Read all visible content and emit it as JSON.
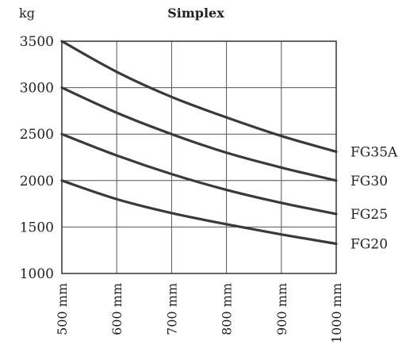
{
  "chart_data": {
    "type": "line",
    "title": "Simplex",
    "ylabel": "kg",
    "xlabel": "",
    "x": [
      500,
      600,
      700,
      800,
      900,
      1000
    ],
    "x_tick_labels": [
      "500 mm",
      "600 mm",
      "700 mm",
      "800 mm",
      "900 mm",
      "1000 mm"
    ],
    "y_ticks": [
      1000,
      1500,
      2000,
      2500,
      3000,
      3500
    ],
    "xlim": [
      500,
      1000
    ],
    "ylim": [
      1000,
      3500
    ],
    "grid": true,
    "series": [
      {
        "name": "FG35A",
        "values": [
          3500,
          3170,
          2900,
          2680,
          2480,
          2310
        ]
      },
      {
        "name": "FG30",
        "values": [
          3000,
          2730,
          2500,
          2300,
          2140,
          2000
        ]
      },
      {
        "name": "FG25",
        "values": [
          2500,
          2270,
          2070,
          1900,
          1760,
          1640
        ]
      },
      {
        "name": "FG20",
        "values": [
          2000,
          1800,
          1650,
          1530,
          1420,
          1320
        ]
      }
    ],
    "line_color": "#3a3a3a",
    "grid_color": "#555555"
  }
}
